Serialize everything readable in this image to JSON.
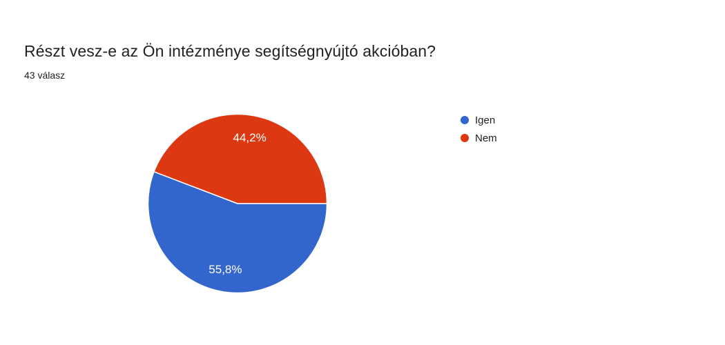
{
  "header": {
    "title": "Részt vesz-e az Ön intézménye segítségnyújtó akcióban?",
    "subtitle": "43 válasz"
  },
  "chart_data": {
    "type": "pie",
    "title": "Részt vesz-e az Ön intézménye segítségnyújtó akcióban?",
    "responses_label": "43 válasz",
    "total_responses": 43,
    "categories": [
      "Igen",
      "Nem"
    ],
    "values": [
      55.8,
      44.2
    ],
    "value_labels": [
      "55,8%",
      "44,2%"
    ],
    "colors": [
      "#3366cc",
      "#dc3912"
    ],
    "legend_position": "right",
    "start_angle_deg": 0,
    "direction": "clockwise",
    "slice_label_color": "#ffffff",
    "slice_border_color": "#ffffff",
    "background_color": "#ffffff",
    "text_color": "#212121"
  }
}
